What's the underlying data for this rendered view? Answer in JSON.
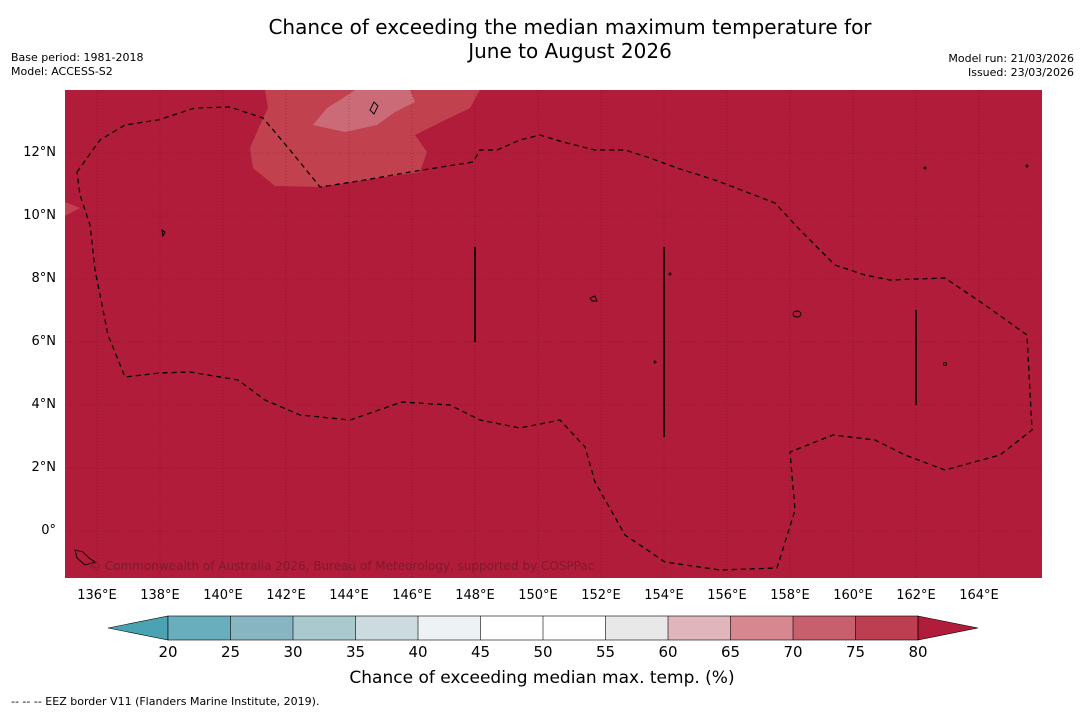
{
  "header": {
    "title_line1": "Chance of exceeding the median maximum temperature for",
    "title_line2": "June to August 2026",
    "base_period": "Base period: 1981-2018",
    "model": "Model: ACCESS-S2",
    "model_run": "Model run: 21/03/2026",
    "issued": "Issued: 23/03/2026"
  },
  "map": {
    "credit": "© Commonwealth of Australia 2026, Bureau of Meteorology, supported by COSPPac",
    "lat_labels": [
      "12°N",
      "10°N",
      "8°N",
      "6°N",
      "4°N",
      "2°N",
      "0°"
    ],
    "lon_labels": [
      "136°E",
      "138°E",
      "140°E",
      "142°E",
      "144°E",
      "146°E",
      "148°E",
      "150°E",
      "152°E",
      "154°E",
      "156°E",
      "158°E",
      "160°E",
      "162°E",
      "164°E"
    ],
    "lon_range": [
      135.0,
      166.0
    ],
    "lat_range": [
      -1.5,
      14.0
    ],
    "background_category": "80+",
    "background_color": "#b01c3a"
  },
  "colorbar": {
    "label": "Chance of exceeding median max. temp. (%)",
    "ticks": [
      "20",
      "25",
      "30",
      "35",
      "40",
      "45",
      "50",
      "55",
      "60",
      "65",
      "70",
      "75",
      "80"
    ],
    "colors": [
      "#69aebd",
      "#87b6c2",
      "#a9c9ce",
      "#cbdbdf",
      "#edf2f4",
      "#ffffff",
      "#ffffff",
      "#e8e8e8",
      "#e0b6bc",
      "#d6878f",
      "#c85f6c",
      "#bd3e50"
    ],
    "below_color": "#4aa3b3",
    "above_color": "#b01c3a"
  },
  "footnote": "-- -- -- EEZ border V11 (Flanders Marine Institute, 2019)."
}
